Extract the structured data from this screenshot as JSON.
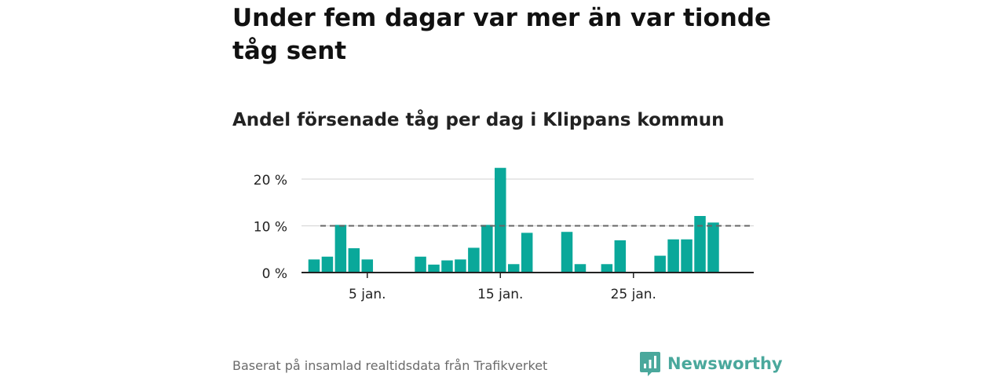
{
  "title": "Under fem dagar var mer än var tionde tåg sent",
  "subtitle": "Andel försenade tåg per dag i Klippans kommun",
  "footer": "Baserat på insamlad realtidsdata från Trafikverket",
  "brand": {
    "name": "Newsworthy",
    "color": "#4aa89c"
  },
  "chart_data": {
    "type": "bar",
    "x": [
      1,
      2,
      3,
      4,
      5,
      6,
      7,
      8,
      9,
      10,
      11,
      12,
      13,
      14,
      15,
      16,
      17,
      18,
      19,
      20,
      21,
      22,
      23,
      24,
      25,
      26,
      27,
      28,
      29,
      30,
      31
    ],
    "values": [
      2.8,
      3.4,
      10.2,
      5.2,
      2.8,
      null,
      null,
      null,
      3.4,
      1.7,
      2.6,
      2.8,
      5.3,
      10.2,
      22.4,
      1.8,
      8.5,
      null,
      null,
      8.7,
      1.8,
      null,
      1.8,
      6.9,
      null,
      null,
      3.6,
      7.1,
      7.1,
      12.1,
      10.7
    ],
    "xticks": [
      5,
      15,
      25
    ],
    "xtick_labels": [
      "5 jan.",
      "15 jan.",
      "25 jan."
    ],
    "yticks": [
      0,
      10,
      20
    ],
    "ytick_labels": [
      "0 %",
      "10 %",
      "20 %"
    ],
    "ylim": [
      0,
      23
    ],
    "reference_line": 10,
    "bar_color": "#0aa89a",
    "grid": true
  }
}
